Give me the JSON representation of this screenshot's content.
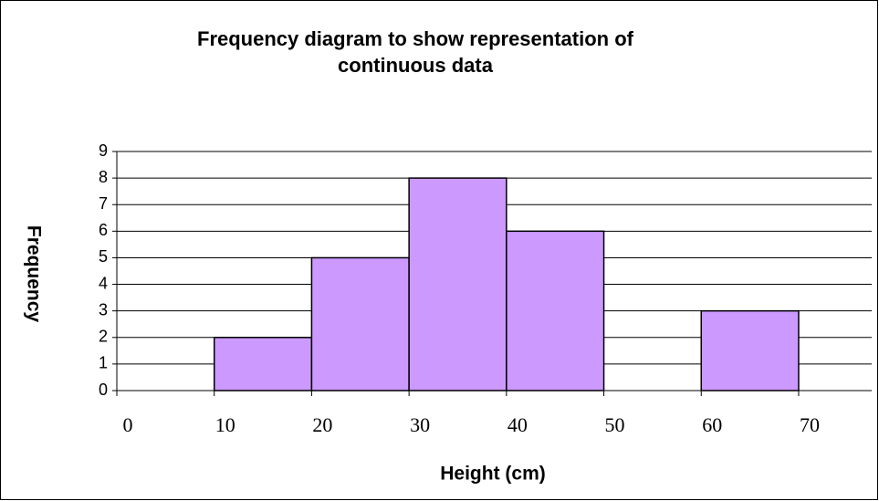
{
  "chart_data": {
    "type": "histogram",
    "title": "Frequency diagram to show representation of continuous data",
    "xlabel": "Height (cm)",
    "ylabel": "Frequency",
    "bins": [
      10,
      20,
      30,
      40,
      50,
      60,
      70
    ],
    "counts": [
      2,
      5,
      8,
      6,
      0,
      3
    ],
    "color": "#cc99ff",
    "xlim": [
      0,
      77.5
    ],
    "xticks": [
      0,
      10,
      20,
      30,
      40,
      50,
      60,
      70
    ],
    "ylim": [
      0,
      9
    ],
    "yticks": [
      0,
      1,
      2,
      3,
      4,
      5,
      6,
      7,
      8,
      9
    ],
    "grid": true
  }
}
